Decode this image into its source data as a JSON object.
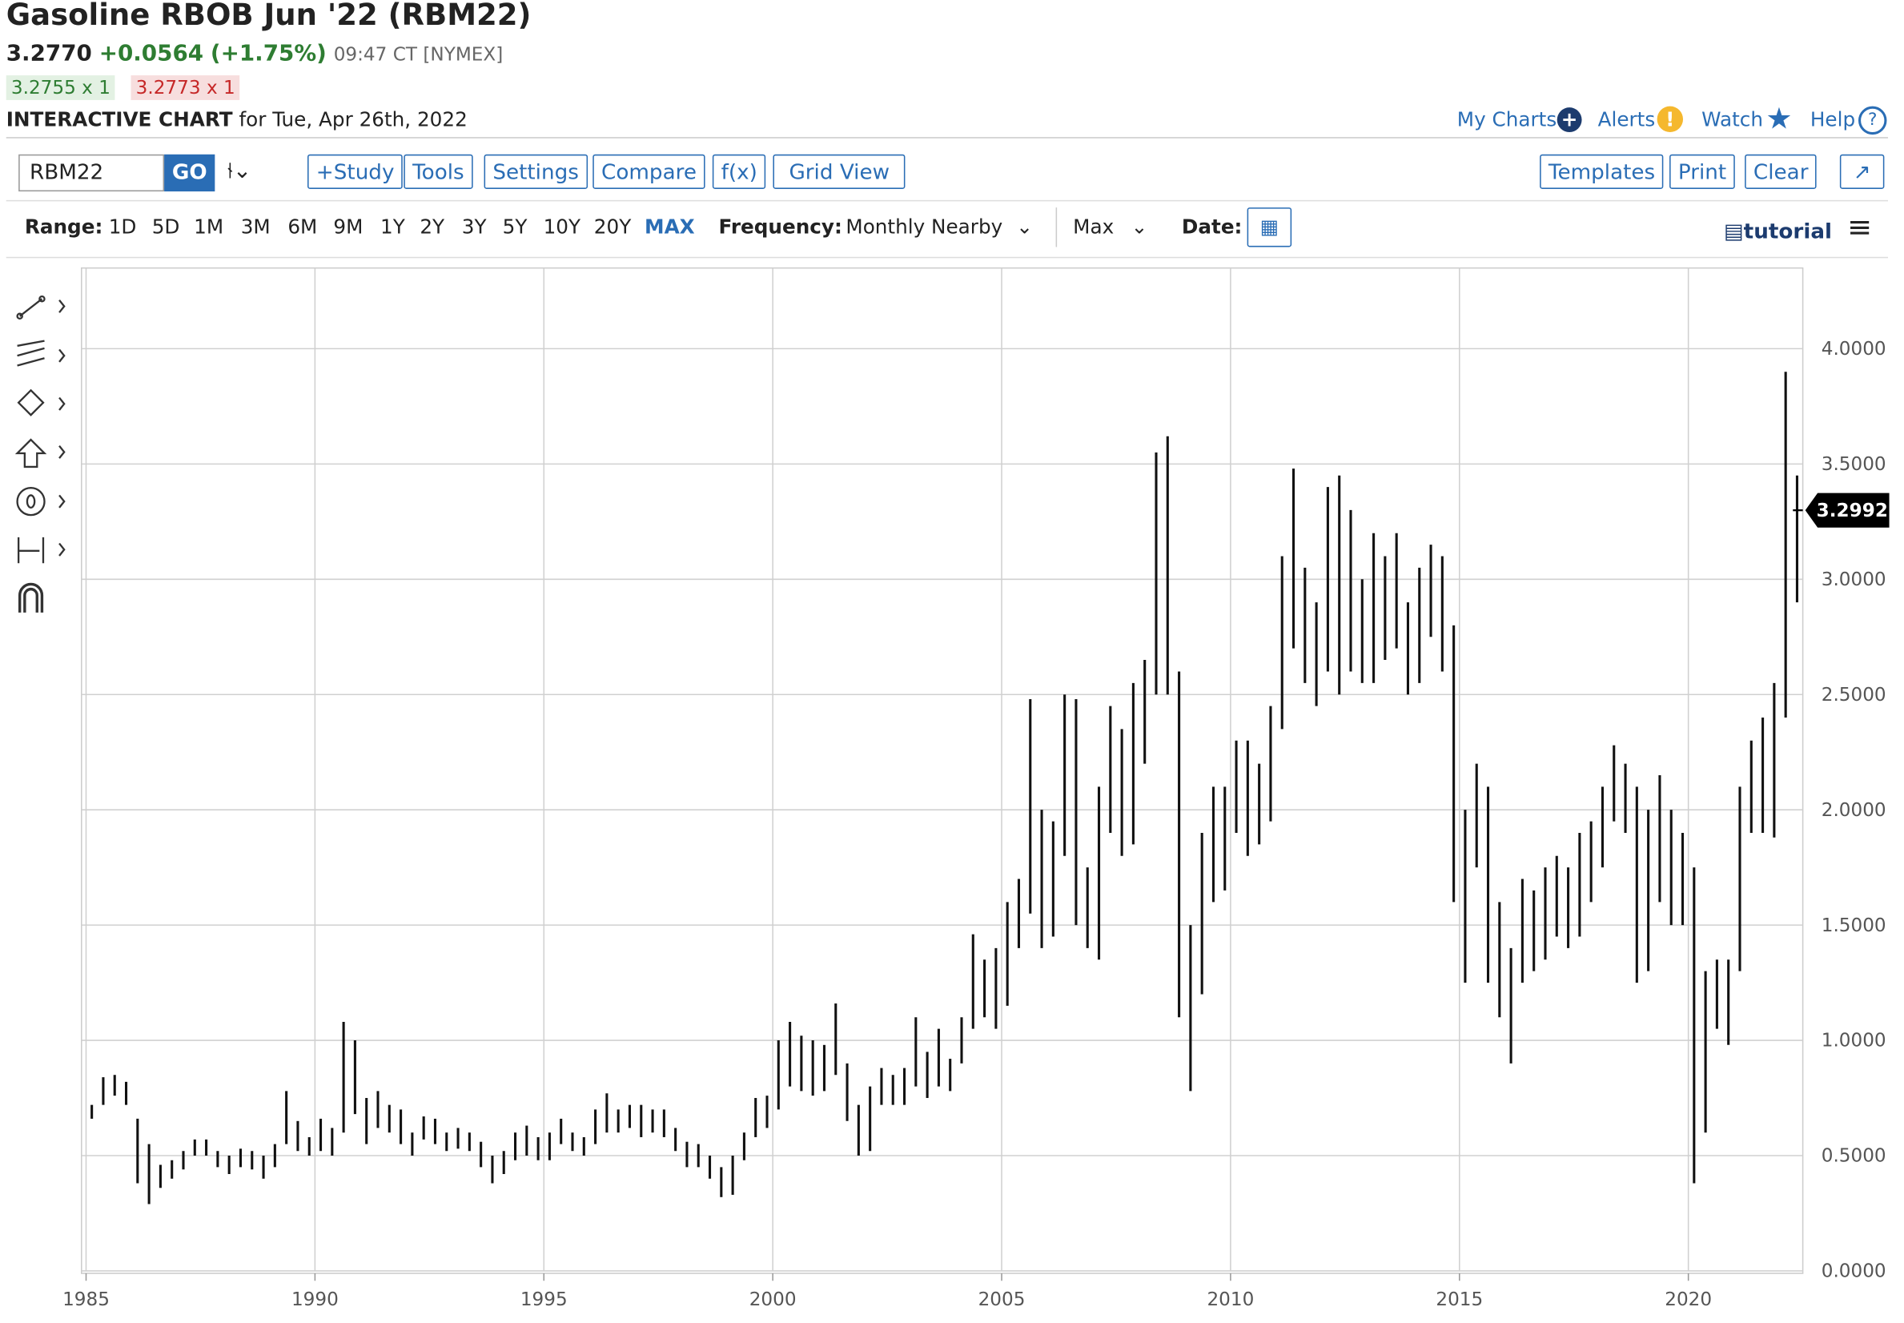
{
  "header": {
    "title": "Gasoline RBOB Jun '22 (RBM22)",
    "last": "3.2770",
    "change": "+0.0564",
    "change_pct": "(+1.75%)",
    "time": "09:47 CT [NYMEX]",
    "bid": "3.2755 x 1",
    "ask": "3.2773 x 1",
    "chart_label": "INTERACTIVE CHART",
    "chart_date": "for Tue, Apr 26th, 2022"
  },
  "links": [
    "My Charts",
    "Alerts",
    "Watch",
    "Help"
  ],
  "toolbar": {
    "symbol": "RBM22",
    "go": "GO",
    "left_buttons": [
      "+Study",
      "Tools",
      "Settings",
      "Compare",
      "f(x)",
      "Grid View"
    ],
    "right_buttons": [
      "Templates",
      "Print",
      "Clear"
    ]
  },
  "range_bar": {
    "range_label": "Range:",
    "ranges": [
      "1D",
      "5D",
      "1M",
      "3M",
      "6M",
      "9M",
      "1Y",
      "2Y",
      "3Y",
      "5Y",
      "10Y",
      "20Y",
      "MAX"
    ],
    "frequency_label": "Frequency:",
    "frequency": "Monthly Nearby",
    "period": "Max",
    "date_label": "Date:",
    "tutorial": "tutorial"
  },
  "chart_data": {
    "type": "ohlc",
    "color": "#111111",
    "grid": true,
    "x": [
      1985.0,
      1985.25,
      1985.5,
      1985.75,
      1986.0,
      1986.25,
      1986.5,
      1986.75,
      1987.0,
      1987.25,
      1987.5,
      1987.75,
      1988.0,
      1988.25,
      1988.5,
      1988.75,
      1989.0,
      1989.25,
      1989.5,
      1989.75,
      1990.0,
      1990.25,
      1990.5,
      1990.75,
      1991.0,
      1991.25,
      1991.5,
      1991.75,
      1992.0,
      1992.25,
      1992.5,
      1992.75,
      1993.0,
      1993.25,
      1993.5,
      1993.75,
      1994.0,
      1994.25,
      1994.5,
      1994.75,
      1995.0,
      1995.25,
      1995.5,
      1995.75,
      1996.0,
      1996.25,
      1996.5,
      1996.75,
      1997.0,
      1997.25,
      1997.5,
      1997.75,
      1998.0,
      1998.25,
      1998.5,
      1998.75,
      1999.0,
      1999.25,
      1999.5,
      1999.75,
      2000.0,
      2000.25,
      2000.5,
      2000.75,
      2001.0,
      2001.25,
      2001.5,
      2001.75,
      2002.0,
      2002.25,
      2002.5,
      2002.75,
      2003.0,
      2003.25,
      2003.5,
      2003.75,
      2004.0,
      2004.25,
      2004.5,
      2004.75,
      2005.0,
      2005.25,
      2005.5,
      2005.75,
      2006.0,
      2006.25,
      2006.5,
      2006.75,
      2007.0,
      2007.25,
      2007.5,
      2007.75,
      2008.0,
      2008.25,
      2008.5,
      2008.75,
      2009.0,
      2009.25,
      2009.5,
      2009.75,
      2010.0,
      2010.25,
      2010.5,
      2010.75,
      2011.0,
      2011.25,
      2011.5,
      2011.75,
      2012.0,
      2012.25,
      2012.5,
      2012.75,
      2013.0,
      2013.25,
      2013.5,
      2013.75,
      2014.0,
      2014.25,
      2014.5,
      2014.75,
      2015.0,
      2015.25,
      2015.5,
      2015.75,
      2016.0,
      2016.25,
      2016.5,
      2016.75,
      2017.0,
      2017.25,
      2017.5,
      2017.75,
      2018.0,
      2018.25,
      2018.5,
      2018.75,
      2019.0,
      2019.25,
      2019.5,
      2019.75,
      2020.0,
      2020.25,
      2020.5,
      2020.75,
      2021.0,
      2021.25,
      2021.5,
      2021.75,
      2022.0,
      2022.25
    ],
    "high": [
      0.72,
      0.84,
      0.85,
      0.82,
      0.66,
      0.55,
      0.46,
      0.48,
      0.52,
      0.57,
      0.57,
      0.52,
      0.5,
      0.53,
      0.52,
      0.5,
      0.55,
      0.78,
      0.65,
      0.58,
      0.66,
      0.62,
      1.08,
      1.0,
      0.75,
      0.78,
      0.72,
      0.7,
      0.6,
      0.67,
      0.66,
      0.6,
      0.62,
      0.6,
      0.56,
      0.5,
      0.52,
      0.6,
      0.63,
      0.58,
      0.6,
      0.66,
      0.6,
      0.58,
      0.7,
      0.77,
      0.7,
      0.72,
      0.72,
      0.7,
      0.7,
      0.62,
      0.56,
      0.55,
      0.5,
      0.45,
      0.5,
      0.6,
      0.75,
      0.76,
      1.0,
      1.08,
      1.02,
      1.0,
      0.98,
      1.16,
      0.9,
      0.72,
      0.8,
      0.88,
      0.85,
      0.88,
      1.1,
      0.95,
      1.05,
      0.92,
      1.1,
      1.46,
      1.35,
      1.4,
      1.6,
      1.7,
      2.48,
      2.0,
      1.95,
      2.5,
      2.48,
      1.75,
      2.1,
      2.45,
      2.35,
      2.55,
      2.65,
      3.55,
      3.62,
      2.6,
      1.5,
      1.9,
      2.1,
      2.1,
      2.3,
      2.3,
      2.2,
      2.45,
      3.1,
      3.48,
      3.05,
      2.9,
      3.4,
      3.45,
      3.3,
      3.0,
      3.2,
      3.1,
      3.2,
      2.9,
      3.05,
      3.15,
      3.1,
      2.8,
      2.0,
      2.2,
      2.1,
      1.6,
      1.4,
      1.7,
      1.65,
      1.75,
      1.8,
      1.75,
      1.9,
      1.95,
      2.1,
      2.28,
      2.2,
      2.1,
      2.0,
      2.15,
      2.0,
      1.9,
      1.75,
      1.3,
      1.35,
      1.35,
      2.1,
      2.3,
      2.4,
      2.55,
      3.9,
      3.45
    ],
    "low": [
      0.66,
      0.72,
      0.76,
      0.72,
      0.38,
      0.29,
      0.36,
      0.4,
      0.44,
      0.5,
      0.5,
      0.45,
      0.42,
      0.45,
      0.44,
      0.4,
      0.45,
      0.55,
      0.52,
      0.5,
      0.52,
      0.5,
      0.6,
      0.68,
      0.55,
      0.62,
      0.6,
      0.55,
      0.5,
      0.57,
      0.55,
      0.52,
      0.53,
      0.52,
      0.45,
      0.38,
      0.42,
      0.48,
      0.5,
      0.48,
      0.48,
      0.55,
      0.52,
      0.5,
      0.55,
      0.6,
      0.6,
      0.62,
      0.58,
      0.6,
      0.58,
      0.52,
      0.45,
      0.45,
      0.4,
      0.32,
      0.33,
      0.48,
      0.58,
      0.62,
      0.7,
      0.8,
      0.78,
      0.76,
      0.78,
      0.85,
      0.65,
      0.5,
      0.52,
      0.72,
      0.72,
      0.72,
      0.8,
      0.75,
      0.8,
      0.78,
      0.9,
      1.05,
      1.1,
      1.05,
      1.15,
      1.4,
      1.55,
      1.4,
      1.45,
      1.8,
      1.5,
      1.4,
      1.35,
      1.9,
      1.8,
      1.85,
      2.2,
      2.5,
      2.5,
      1.1,
      0.78,
      1.2,
      1.6,
      1.65,
      1.9,
      1.8,
      1.85,
      1.95,
      2.35,
      2.7,
      2.55,
      2.45,
      2.6,
      2.5,
      2.6,
      2.55,
      2.55,
      2.65,
      2.7,
      2.5,
      2.55,
      2.75,
      2.6,
      1.6,
      1.25,
      1.75,
      1.25,
      1.1,
      0.9,
      1.25,
      1.3,
      1.35,
      1.45,
      1.4,
      1.45,
      1.6,
      1.75,
      1.95,
      1.9,
      1.25,
      1.3,
      1.6,
      1.5,
      1.5,
      0.38,
      0.6,
      1.05,
      0.98,
      1.3,
      1.9,
      1.9,
      1.88,
      2.4,
      2.9
    ],
    "last_price": 3.2992,
    "xlim": [
      1984.9,
      2022.5
    ],
    "ylim": [
      0,
      4.35
    ],
    "xticks": [
      1985,
      1990,
      1995,
      2000,
      2005,
      2010,
      2015,
      2020
    ],
    "yticks": [
      {
        "value": 0,
        "label": "0.0000"
      },
      {
        "value": 0.5,
        "label": "0.5000"
      },
      {
        "value": 1,
        "label": "1.0000"
      },
      {
        "value": 1.5,
        "label": "1.5000"
      },
      {
        "value": 2,
        "label": "2.0000"
      },
      {
        "value": 2.5,
        "label": "2.5000"
      },
      {
        "value": 3,
        "label": "3.0000"
      },
      {
        "value": 3.5,
        "label": "3.5000"
      },
      {
        "value": 4,
        "label": "4.0000"
      }
    ]
  }
}
